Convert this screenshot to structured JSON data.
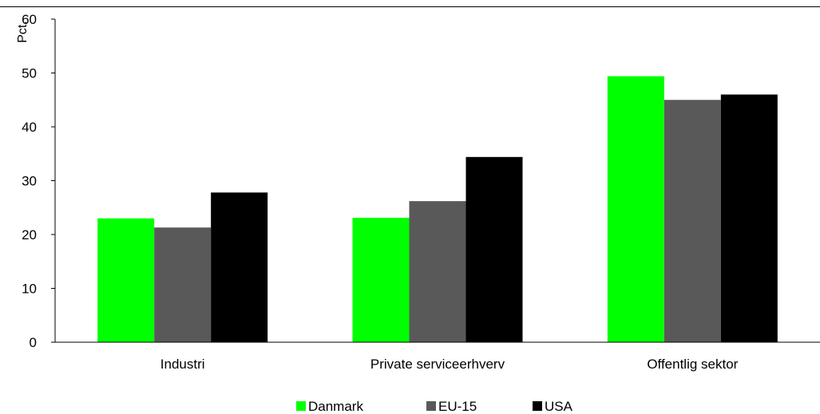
{
  "chart_data": {
    "type": "bar",
    "categories": [
      "Industri",
      "Private serviceerhverv",
      "Offentlig sektor"
    ],
    "series": [
      {
        "name": "Danmark",
        "values": [
          23,
          23.1,
          49.4
        ],
        "color": "#00ff00"
      },
      {
        "name": "EU-15",
        "values": [
          21.3,
          26.2,
          45
        ],
        "color": "#595959"
      },
      {
        "name": "USA",
        "values": [
          27.8,
          34.4,
          46
        ],
        "color": "#000000"
      }
    ],
    "title": "",
    "xlabel": "",
    "ylabel": "Pct.",
    "ylim": [
      0,
      60
    ],
    "yticks": [
      "0",
      "10",
      "20",
      "30",
      "40",
      "50",
      "60"
    ],
    "grid": false,
    "legend": "bottom"
  }
}
